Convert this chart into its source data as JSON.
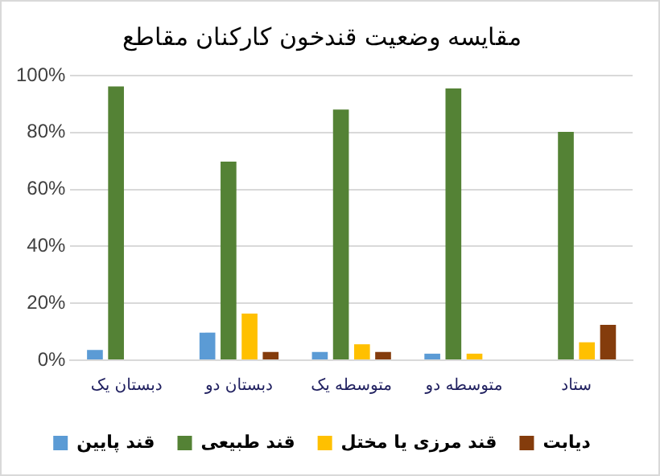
{
  "chart_data": {
    "type": "bar",
    "title": "مقایسه وضعیت قندخون کارکنان مقاطع",
    "categories": [
      "دبستان یک",
      "دبستان دو",
      "متوسطه یک",
      "متوسطه دو",
      "ستاد"
    ],
    "series": [
      {
        "name": "قند پایین",
        "color": "#5b9bd5",
        "values": [
          3.6,
          9.7,
          2.9,
          2.3,
          0
        ]
      },
      {
        "name": "قند طبیعی",
        "color": "#548235",
        "values": [
          96.2,
          69.8,
          88.1,
          95.5,
          80.2
        ]
      },
      {
        "name": "قند مرزی یا مختل",
        "color": "#ffc000",
        "values": [
          0,
          16.4,
          5.6,
          2.3,
          6.3
        ]
      },
      {
        "name": "دیابت",
        "color": "#843c0c",
        "values": [
          0,
          2.9,
          2.9,
          0,
          12.4
        ]
      }
    ],
    "ylim": [
      0,
      100
    ],
    "yticks": [
      {
        "value": 0,
        "label": "0%"
      },
      {
        "value": 20,
        "label": "20%"
      },
      {
        "value": 40,
        "label": "40%"
      },
      {
        "value": 60,
        "label": "60%"
      },
      {
        "value": 80,
        "label": "80%"
      },
      {
        "value": 100,
        "label": "100%"
      }
    ],
    "grid": "y",
    "legend": "bottom"
  }
}
